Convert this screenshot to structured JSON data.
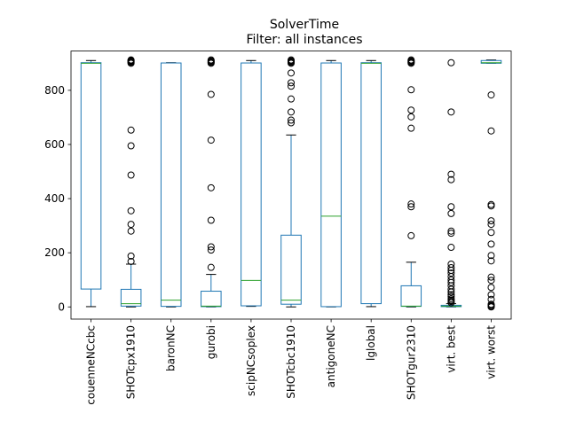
{
  "chart_data": {
    "type": "boxplot",
    "title": "SolverTime",
    "subtitle": "Filter: all instances",
    "xlabel": "",
    "ylabel": "",
    "ylim": [
      -45,
      945
    ],
    "yticks": [
      0,
      200,
      400,
      600,
      800
    ],
    "grid": false,
    "legend": "none",
    "colors": {
      "box": "#1f77b4",
      "median": "#2ca02c",
      "whisker": "#1f77b4",
      "cap": "#000000",
      "outlier": "#000000"
    },
    "categories": [
      "couenneNCcbc",
      "SHOTcpx1910",
      "baronNC",
      "gurobi",
      "scipNCsoplex",
      "SHOTcbc1910",
      "antigoneNC",
      "lglobal",
      "SHOTgur2310",
      "virt. best",
      "virt. worst"
    ],
    "boxes": [
      {
        "name": "couenneNCcbc",
        "whisker_low": 1,
        "q1": 66,
        "median": 900,
        "q3": 902,
        "whisker_high": 910,
        "outliers": []
      },
      {
        "name": "SHOTcpx1910",
        "whisker_low": 0,
        "q1": 3,
        "median": 12,
        "q3": 65,
        "whisker_high": 158,
        "outliers": [
          168,
          188,
          280,
          305,
          355,
          487,
          595,
          653,
          900,
          903,
          906,
          908,
          910,
          912
        ]
      },
      {
        "name": "baronNC",
        "whisker_low": 0,
        "q1": 2,
        "median": 25,
        "q3": 901,
        "whisker_high": 902,
        "outliers": []
      },
      {
        "name": "gurobi",
        "whisker_low": 0,
        "q1": 1,
        "median": 3,
        "q3": 58,
        "whisker_high": 120,
        "outliers": [
          146,
          210,
          222,
          320,
          440,
          616,
          785,
          900,
          903,
          906,
          909,
          912
        ]
      },
      {
        "name": "scipNCsoplex",
        "whisker_low": 2,
        "q1": 4,
        "median": 98,
        "q3": 901,
        "whisker_high": 910,
        "outliers": []
      },
      {
        "name": "SHOTcbc1910",
        "whisker_low": 0,
        "q1": 10,
        "median": 25,
        "q3": 265,
        "whisker_high": 635,
        "outliers": [
          680,
          690,
          720,
          768,
          815,
          828,
          864,
          900,
          903,
          906,
          909,
          912
        ]
      },
      {
        "name": "antigoneNC",
        "whisker_low": 0,
        "q1": 1,
        "median": 335,
        "q3": 901,
        "whisker_high": 910,
        "outliers": []
      },
      {
        "name": "lglobal",
        "whisker_low": 1,
        "q1": 12,
        "median": 900,
        "q3": 902,
        "whisker_high": 910,
        "outliers": []
      },
      {
        "name": "SHOTgur2310",
        "whisker_low": 0,
        "q1": 2,
        "median": 3,
        "q3": 78,
        "whisker_high": 165,
        "outliers": [
          263,
          370,
          380,
          660,
          702,
          727,
          802,
          900,
          903,
          906,
          909,
          912
        ]
      },
      {
        "name": "virt. best",
        "whisker_low": 0,
        "q1": 1,
        "median": 3,
        "q3": 6,
        "whisker_high": 12,
        "outliers": [
          15,
          20,
          25,
          30,
          38,
          45,
          55,
          65,
          78,
          90,
          100,
          112,
          125,
          135,
          145,
          158,
          220,
          272,
          280,
          345,
          370,
          470,
          490,
          720,
          902
        ]
      },
      {
        "name": "virt. worst",
        "whisker_low": 900,
        "q1": 900,
        "median": 902,
        "q3": 910,
        "whisker_high": 912,
        "outliers": [
          0,
          3,
          6,
          10,
          28,
          45,
          72,
          98,
          110,
          170,
          190,
          232,
          275,
          305,
          318,
          373,
          378,
          650,
          783
        ]
      }
    ]
  }
}
